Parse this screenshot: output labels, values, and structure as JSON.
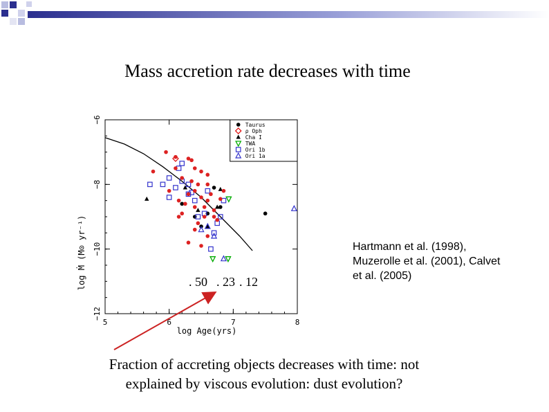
{
  "slide": {
    "title": "Mass accretion rate decreases with time",
    "credit_lines": [
      "Hartmann et al. (1998),",
      "Muzerolle et al. (2001), Calvet",
      "et al. (2005)"
    ],
    "caption_lines": [
      "Fraction of accreting objects decreases with time: not",
      "explained by viscous evolution: dust evolution?"
    ],
    "fractions": [
      ". 50",
      ". 23",
      ". 12"
    ],
    "accent_color": "#2b2f8f",
    "arrow_color": "#cc2222"
  },
  "chart_data": {
    "type": "scatter",
    "xlabel": "log Age(yrs)",
    "ylabel": "log Ṁ (M⊙ yr⁻¹)",
    "xlim": [
      5,
      8
    ],
    "ylim": [
      -12,
      -6
    ],
    "xticks": [
      "5",
      "6",
      "7",
      "8"
    ],
    "yticks": [
      "−6",
      "−8",
      "−10",
      "−12"
    ],
    "legend_position": "top-right",
    "series": [
      {
        "name": "Taurus",
        "marker": "filled-circle",
        "color": "#000000",
        "points": [
          [
            6.2,
            -8.6
          ],
          [
            6.5,
            -9.3
          ],
          [
            6.6,
            -8.9
          ],
          [
            7.5,
            -8.9
          ],
          [
            6.8,
            -8.7
          ],
          [
            6.4,
            -9.0
          ],
          [
            6.7,
            -8.1
          ]
        ]
      },
      {
        "name": "ρ Oph",
        "marker": "open-diamond",
        "color": "#dd0000",
        "points": [
          [
            6.1,
            -7.2
          ]
        ]
      },
      {
        "name": "Cha I",
        "marker": "filled-triangle",
        "color": "#000000",
        "points": [
          [
            5.65,
            -8.45
          ],
          [
            6.25,
            -8.1
          ],
          [
            6.8,
            -8.15
          ],
          [
            6.6,
            -9.3
          ],
          [
            6.75,
            -8.7
          ],
          [
            6.45,
            -8.8
          ]
        ]
      },
      {
        "name": "TWA",
        "marker": "open-triangle-down",
        "color": "#00aa00",
        "points": [
          [
            6.93,
            -8.45
          ],
          [
            6.68,
            -10.3
          ],
          [
            6.92,
            -10.3
          ]
        ]
      },
      {
        "name": "Ori 1b",
        "marker": "open-square",
        "color": "#3333cc",
        "points": [
          [
            5.7,
            -8.0
          ],
          [
            6.0,
            -7.8
          ],
          [
            6.15,
            -7.5
          ],
          [
            6.3,
            -8.0
          ],
          [
            6.0,
            -8.4
          ],
          [
            6.4,
            -8.5
          ],
          [
            6.45,
            -9.0
          ],
          [
            6.6,
            -8.2
          ],
          [
            6.1,
            -8.1
          ],
          [
            6.2,
            -7.9
          ],
          [
            6.8,
            -9.0
          ],
          [
            6.7,
            -9.5
          ],
          [
            6.55,
            -8.9
          ],
          [
            6.3,
            -8.3
          ],
          [
            6.65,
            -10.0
          ],
          [
            6.85,
            -8.5
          ],
          [
            6.75,
            -9.2
          ],
          [
            5.9,
            -8.0
          ],
          [
            6.2,
            -7.35
          ],
          [
            6.35,
            -8.25
          ]
        ]
      },
      {
        "name": "Ori 1a",
        "marker": "open-triangle",
        "color": "#3333cc",
        "points": [
          [
            7.95,
            -8.75
          ],
          [
            6.5,
            -9.4
          ],
          [
            6.6,
            -9.3
          ],
          [
            6.85,
            -10.3
          ],
          [
            6.7,
            -9.6
          ]
        ]
      },
      {
        "name": "",
        "marker": "filled-circle",
        "color": "#dd2222",
        "points": [
          [
            5.95,
            -7.0
          ],
          [
            6.1,
            -7.5
          ],
          [
            6.3,
            -7.2
          ],
          [
            6.4,
            -7.5
          ],
          [
            6.2,
            -7.8
          ],
          [
            6.35,
            -7.9
          ],
          [
            6.5,
            -7.6
          ],
          [
            6.6,
            -7.7
          ],
          [
            6.45,
            -8.0
          ],
          [
            6.3,
            -8.3
          ],
          [
            6.15,
            -8.5
          ],
          [
            6.25,
            -8.6
          ],
          [
            6.4,
            -8.7
          ],
          [
            6.5,
            -8.4
          ],
          [
            6.6,
            -8.5
          ],
          [
            6.7,
            -8.8
          ],
          [
            6.55,
            -9.0
          ],
          [
            6.75,
            -9.1
          ],
          [
            6.6,
            -9.6
          ],
          [
            6.4,
            -9.4
          ],
          [
            6.3,
            -9.8
          ],
          [
            6.5,
            -9.9
          ],
          [
            6.7,
            -9.0
          ],
          [
            6.85,
            -8.2
          ],
          [
            6.15,
            -9.0
          ],
          [
            6.2,
            -8.9
          ],
          [
            6.0,
            -8.2
          ],
          [
            5.75,
            -7.6
          ],
          [
            6.4,
            -8.2
          ],
          [
            6.65,
            -8.3
          ],
          [
            6.35,
            -7.25
          ],
          [
            6.55,
            -8.7
          ],
          [
            6.45,
            -9.2
          ],
          [
            6.8,
            -8.45
          ],
          [
            6.1,
            -7.15
          ],
          [
            6.6,
            -8.0
          ]
        ]
      }
    ],
    "lines": [
      {
        "name": "",
        "points": [
          [
            5.0,
            -6.55
          ],
          [
            5.3,
            -6.75
          ],
          [
            5.6,
            -7.05
          ],
          [
            5.9,
            -7.45
          ],
          [
            6.2,
            -7.9
          ],
          [
            6.5,
            -8.4
          ],
          [
            6.8,
            -9.0
          ],
          [
            7.1,
            -9.6
          ],
          [
            7.3,
            -10.05
          ]
        ]
      }
    ]
  }
}
